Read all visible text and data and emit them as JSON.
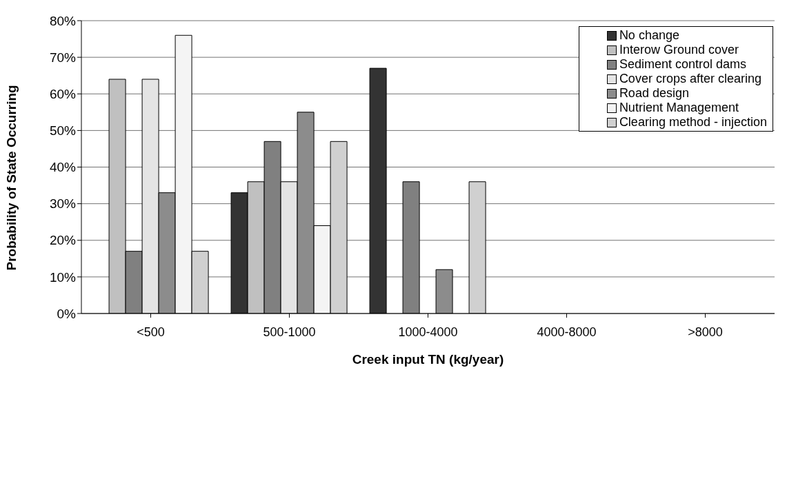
{
  "chart_data": {
    "type": "bar",
    "xlabel": "Creek input TN (kg/year)",
    "ylabel": "Probability of State Occurring",
    "categories": [
      "<500",
      "500-1000",
      "1000-4000",
      "4000-8000",
      ">8000"
    ],
    "series": [
      {
        "name": "No change",
        "color": "#333333",
        "values": [
          0,
          33,
          67,
          0,
          0
        ]
      },
      {
        "name": "Interow Ground cover",
        "color": "#c0c0c0",
        "values": [
          64,
          36,
          0,
          0,
          0
        ]
      },
      {
        "name": "Sediment control dams",
        "color": "#808080",
        "values": [
          17,
          47,
          36,
          0,
          0
        ]
      },
      {
        "name": "Cover crops after clearing",
        "color": "#e4e4e4",
        "values": [
          64,
          36,
          0,
          0,
          0
        ]
      },
      {
        "name": "Road design",
        "color": "#8c8c8c",
        "values": [
          33,
          55,
          12,
          0,
          0
        ]
      },
      {
        "name": "Nutrient Management",
        "color": "#f4f4f4",
        "values": [
          76,
          24,
          0,
          0,
          0
        ]
      },
      {
        "name": "Clearing method - injection",
        "color": "#d0d0d0",
        "values": [
          17,
          47,
          36,
          0,
          0
        ]
      }
    ],
    "ylim": [
      0,
      80
    ],
    "yticks": [
      {
        "value": 0,
        "label": "0%"
      },
      {
        "value": 10,
        "label": "10%"
      },
      {
        "value": 20,
        "label": "20%"
      },
      {
        "value": 30,
        "label": "30%"
      },
      {
        "value": 40,
        "label": "40%"
      },
      {
        "value": 50,
        "label": "50%"
      },
      {
        "value": 60,
        "label": "60%"
      },
      {
        "value": 70,
        "label": "70%"
      },
      {
        "value": 80,
        "label": "80%"
      }
    ],
    "grid": "y",
    "legend": "top right"
  }
}
